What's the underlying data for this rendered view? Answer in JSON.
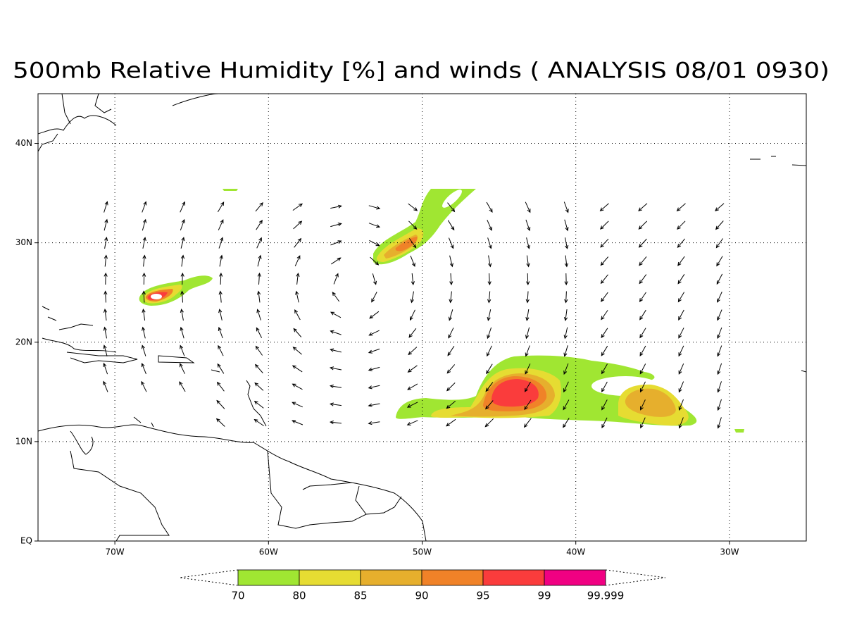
{
  "title": "500mb Relative Humidity [%] and winds ( ANALYSIS 08/01 0930)",
  "map": {
    "lon_range": [
      -75,
      -25
    ],
    "lat_range": [
      0,
      45
    ],
    "lon_ticks": [
      {
        "value": -70,
        "label": "70W"
      },
      {
        "value": -60,
        "label": "60W"
      },
      {
        "value": -50,
        "label": "50W"
      },
      {
        "value": -40,
        "label": "40W"
      },
      {
        "value": -30,
        "label": "30W"
      }
    ],
    "lat_ticks": [
      {
        "value": 0,
        "label": "EQ"
      },
      {
        "value": 10,
        "label": "10N"
      },
      {
        "value": 20,
        "label": "20N"
      },
      {
        "value": 30,
        "label": "30N"
      },
      {
        "value": 40,
        "label": "40N"
      }
    ]
  },
  "colorbar": {
    "levels": [
      70,
      80,
      85,
      90,
      95,
      99,
      99.999
    ],
    "colors": [
      "#a0e632",
      "#e6dc32",
      "#e6af2d",
      "#f08228",
      "#fa3c3c",
      "#f00082"
    ]
  }
}
